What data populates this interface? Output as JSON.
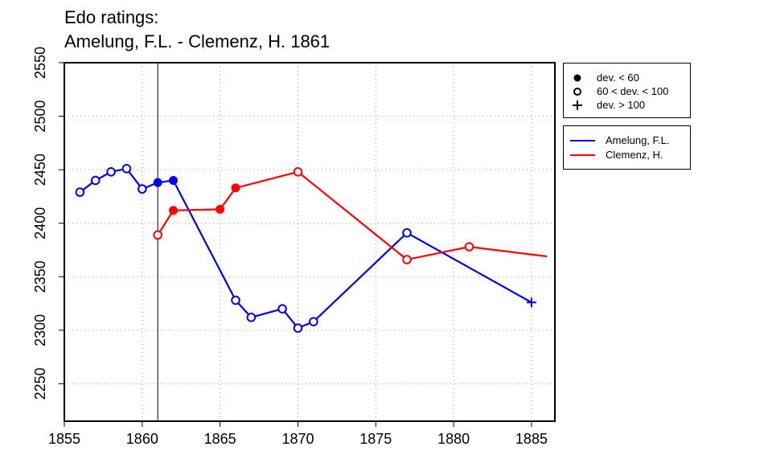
{
  "title": {
    "line1": "Edo ratings:",
    "line2": "Amelung, F.L. - Clemenz, H. 1861"
  },
  "chart_data": {
    "type": "line",
    "xlim": [
      1855,
      1886.5
    ],
    "ylim": [
      2215,
      2550
    ],
    "x_ticks": [
      1855,
      1860,
      1865,
      1870,
      1875,
      1880,
      1885
    ],
    "y_ticks": [
      2250,
      2300,
      2350,
      2400,
      2450,
      2500,
      2550
    ],
    "grid": true,
    "vertical_marker_x": 1861,
    "series": [
      {
        "name": "Amelung, F.L.",
        "color": "#0000ee",
        "points": [
          {
            "x": 1856,
            "y": 2429,
            "marker": "open"
          },
          {
            "x": 1857,
            "y": 2440,
            "marker": "open"
          },
          {
            "x": 1858,
            "y": 2448,
            "marker": "open"
          },
          {
            "x": 1859,
            "y": 2451,
            "marker": "open"
          },
          {
            "x": 1860,
            "y": 2432,
            "marker": "open"
          },
          {
            "x": 1861,
            "y": 2438,
            "marker": "filled"
          },
          {
            "x": 1862,
            "y": 2440,
            "marker": "filled"
          },
          {
            "x": 1866,
            "y": 2328,
            "marker": "open"
          },
          {
            "x": 1867,
            "y": 2312,
            "marker": "open"
          },
          {
            "x": 1869,
            "y": 2320,
            "marker": "open"
          },
          {
            "x": 1870,
            "y": 2302,
            "marker": "open"
          },
          {
            "x": 1871,
            "y": 2308,
            "marker": "open"
          },
          {
            "x": 1877,
            "y": 2391,
            "marker": "open"
          },
          {
            "x": 1885,
            "y": 2326,
            "marker": "plus"
          }
        ]
      },
      {
        "name": "Clemenz, H.",
        "color": "#ff0000",
        "points": [
          {
            "x": 1861,
            "y": 2389,
            "marker": "open"
          },
          {
            "x": 1862,
            "y": 2412,
            "marker": "filled"
          },
          {
            "x": 1865,
            "y": 2413,
            "marker": "filled"
          },
          {
            "x": 1866,
            "y": 2433,
            "marker": "filled"
          },
          {
            "x": 1870,
            "y": 2448,
            "marker": "open"
          },
          {
            "x": 1877,
            "y": 2366,
            "marker": "open"
          },
          {
            "x": 1881,
            "y": 2378,
            "marker": "open"
          },
          {
            "x": 1886,
            "y": 2369,
            "marker": "none"
          }
        ]
      }
    ],
    "marker_legend": [
      {
        "symbol": "filled",
        "label": "dev. < 60"
      },
      {
        "symbol": "open",
        "label": "60 < dev. < 100"
      },
      {
        "symbol": "plus",
        "label": "dev. > 100"
      }
    ],
    "legend_position": "right"
  }
}
